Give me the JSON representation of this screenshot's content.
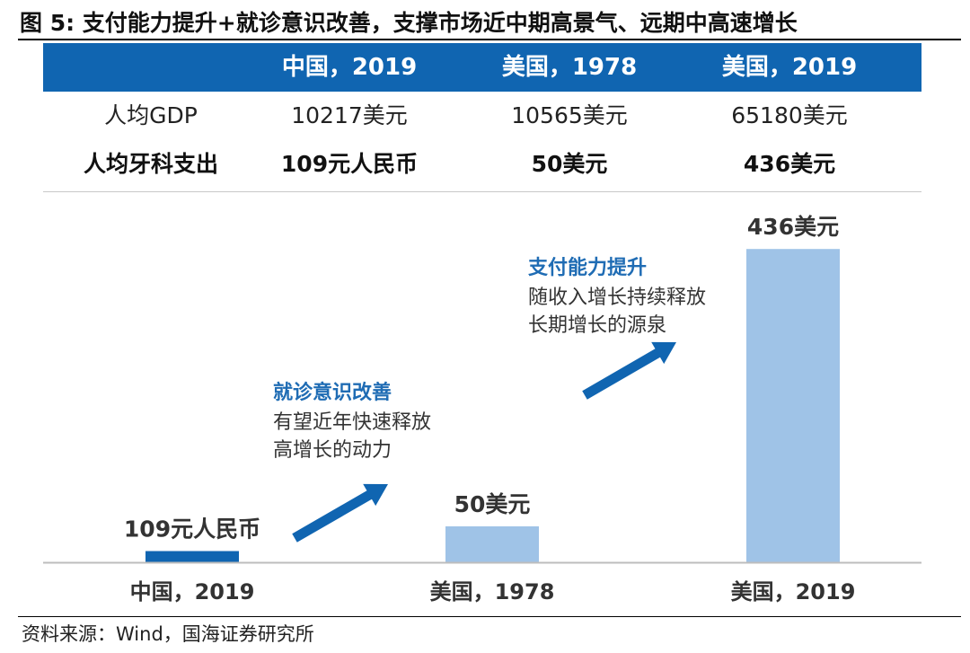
{
  "title": "图 5:  支付能力提升+就诊意识改善，支撑市场近中期高景气、远期中高速增长",
  "table": {
    "headers": [
      "",
      "中国，2019",
      "美国，1978",
      "美国，2019"
    ],
    "rows": [
      {
        "label": "人均GDP",
        "values": [
          "10217美元",
          "10565美元",
          "65180美元"
        ]
      },
      {
        "label": "人均牙科支出",
        "values": [
          "109元人民币",
          "50美元",
          "436美元"
        ]
      }
    ]
  },
  "chart_data": {
    "type": "bar",
    "categories": [
      "中国，2019",
      "美国，1978",
      "美国，2019"
    ],
    "values": [
      15.6,
      50,
      436
    ],
    "value_labels": [
      "109元人民币",
      "50美元",
      "436美元"
    ],
    "ylim": [
      0,
      480
    ],
    "grid": false,
    "colors": [
      "#1065b1",
      "#9fc3e7",
      "#9fc3e7"
    ],
    "annotations": [
      {
        "heading": "就诊意识改善",
        "lines": [
          "有望近年快速释放",
          "高增长的动力"
        ]
      },
      {
        "heading": "支付能力提升",
        "lines": [
          "随收入增长持续释放",
          "长期增长的源泉"
        ]
      }
    ]
  },
  "arrow_color": "#1065b1",
  "source": "资料来源：Wind，国海证券研究所"
}
